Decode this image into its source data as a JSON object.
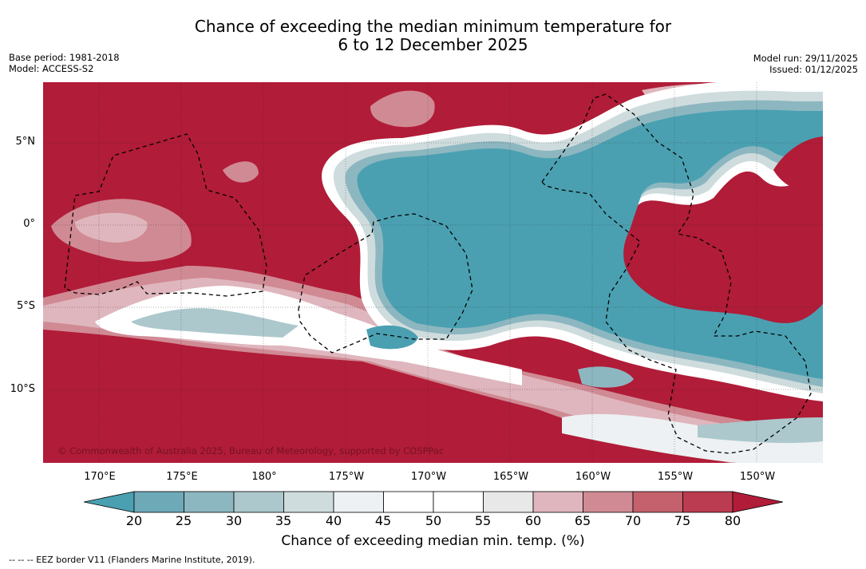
{
  "title": {
    "line1": "Chance of exceeding the median minimum temperature for",
    "line2": "6 to 12 December 2025"
  },
  "meta": {
    "base_period": "Base period: 1981-2018",
    "model": "Model: ACCESS-S2",
    "model_run": "Model run: 29/11/2025",
    "issued": "Issued: 01/12/2025"
  },
  "map": {
    "latitude_labels": [
      "5°N",
      "0°",
      "5°S",
      "10°S"
    ],
    "longitude_labels": [
      "170°E",
      "175°E",
      "180°",
      "175°W",
      "170°W",
      "165°W",
      "160°W",
      "155°W",
      "150°W"
    ],
    "copyright": "© Commonwealth of Australia 2025, Bureau of Meteorology, supported by COSPPac",
    "colors": {
      "hot": "#b11c38",
      "cool": "#4aa0b1"
    }
  },
  "colorbar": {
    "ticks": [
      "20",
      "25",
      "30",
      "35",
      "40",
      "45",
      "50",
      "55",
      "60",
      "65",
      "70",
      "75",
      "80"
    ],
    "colors": [
      "#4aa0b1",
      "#6ea9b8",
      "#8db7c0",
      "#acc8cc",
      "#cfdcde",
      "#edf1f3",
      "#ffffff",
      "#ffffff",
      "#e8e8e8",
      "#dfb6bd",
      "#d08a94",
      "#c5606d",
      "#bb3c50",
      "#b11c38"
    ],
    "label": "Chance of exceeding median min. temp. (%)"
  },
  "footer": "--  --  -- EEZ border V11 (Flanders Marine Institute, 2019)."
}
